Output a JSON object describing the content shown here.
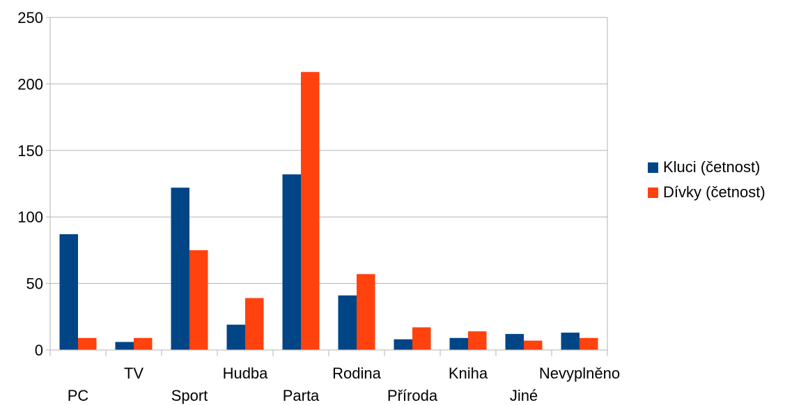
{
  "chart_data": {
    "type": "bar",
    "categories": [
      "PC",
      "TV",
      "Sport",
      "Hudba",
      "Parta",
      "Rodina",
      "Příroda",
      "Kniha",
      "Jiné",
      "Nevyplněno"
    ],
    "series": [
      {
        "name": "Kluci (četnost)",
        "color": "#004586",
        "values": [
          87,
          6,
          122,
          19,
          132,
          41,
          8,
          9,
          12,
          13
        ]
      },
      {
        "name": "Dívky (četnost)",
        "color": "#ff420e",
        "values": [
          9,
          9,
          75,
          39,
          209,
          57,
          17,
          14,
          7,
          9
        ]
      }
    ],
    "ylim": [
      0,
      250
    ],
    "yticks": [
      0,
      50,
      100,
      150,
      200,
      250
    ],
    "grid": true,
    "legend_position": "right",
    "xlabel": "",
    "ylabel": "",
    "title": ""
  }
}
